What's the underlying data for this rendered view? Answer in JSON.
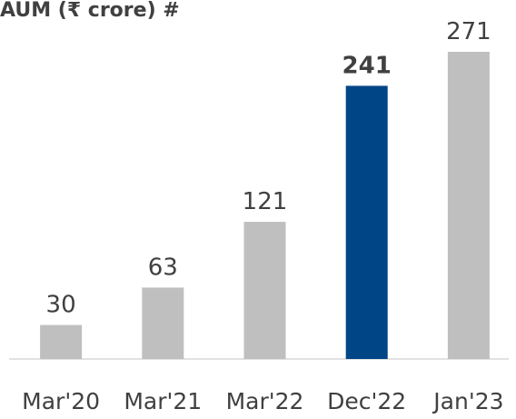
{
  "chart_data": {
    "type": "bar",
    "title": "AUM (₹ crore) #",
    "categories": [
      "Mar'20",
      "Mar'21",
      "Mar'22",
      "Dec'22",
      "Jan'23"
    ],
    "values": [
      30,
      63,
      121,
      241,
      271
    ],
    "colors": [
      "#bfbfbf",
      "#bfbfbf",
      "#bfbfbf",
      "#004586",
      "#bfbfbf"
    ]
  }
}
